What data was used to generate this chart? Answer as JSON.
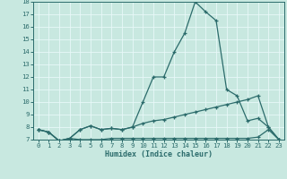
{
  "xlabel": "Humidex (Indice chaleur)",
  "x_values": [
    0,
    1,
    2,
    3,
    4,
    5,
    6,
    7,
    8,
    9,
    10,
    11,
    12,
    13,
    14,
    15,
    16,
    17,
    18,
    19,
    20,
    21,
    22,
    23
  ],
  "line1_y": [
    7.8,
    7.6,
    6.9,
    7.1,
    7.8,
    8.1,
    7.8,
    7.9,
    7.8,
    8.0,
    10.0,
    12.0,
    12.0,
    14.0,
    15.5,
    18.0,
    17.2,
    16.5,
    11.0,
    10.5,
    8.5,
    8.7,
    8.0,
    7.0
  ],
  "line2_y": [
    7.8,
    7.6,
    6.9,
    7.1,
    7.8,
    8.1,
    7.8,
    7.9,
    7.8,
    8.0,
    8.3,
    8.5,
    8.6,
    8.8,
    9.0,
    9.2,
    9.4,
    9.6,
    9.8,
    10.0,
    10.2,
    10.5,
    8.0,
    7.0
  ],
  "line3_y": [
    7.8,
    7.6,
    6.9,
    7.1,
    7.0,
    7.0,
    7.0,
    7.1,
    7.1,
    7.1,
    7.1,
    7.1,
    7.1,
    7.1,
    7.1,
    7.1,
    7.1,
    7.1,
    7.1,
    7.1,
    7.1,
    7.2,
    7.8,
    7.0
  ],
  "line_color": "#2b6b6b",
  "bg_color": "#c8e8e0",
  "grid_color": "#e8f8f8",
  "ylim": [
    7,
    18
  ],
  "xlim": [
    -0.5,
    23.5
  ],
  "yticks": [
    7,
    8,
    9,
    10,
    11,
    12,
    13,
    14,
    15,
    16,
    17,
    18
  ],
  "xticks": [
    0,
    1,
    2,
    3,
    4,
    5,
    6,
    7,
    8,
    9,
    10,
    11,
    12,
    13,
    14,
    15,
    16,
    17,
    18,
    19,
    20,
    21,
    22,
    23
  ],
  "xlabel_fontsize": 6.0,
  "tick_fontsize": 5.2
}
